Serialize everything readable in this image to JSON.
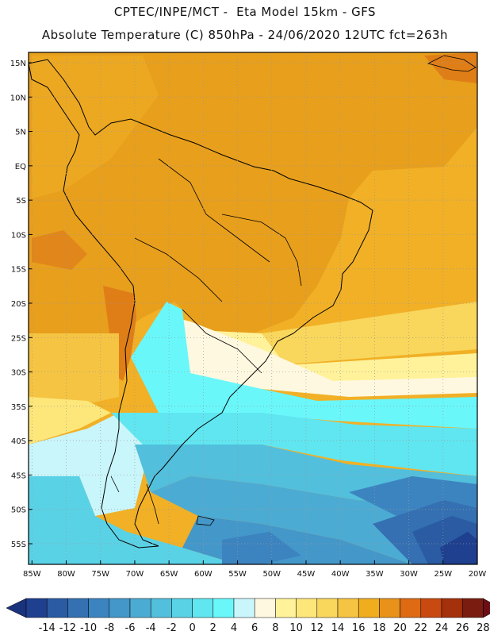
{
  "header": {
    "line1": "CPTEC/INPE/MCT -  Eta Model 15km - GFS",
    "line2": "Absolute Temperature (C) 850hPa - 24/06/2020 12UTC fct=263h"
  },
  "map": {
    "lat_labels": [
      "15N",
      "10N",
      "5N",
      "EQ",
      "5S",
      "10S",
      "15S",
      "20S",
      "25S",
      "30S",
      "35S",
      "40S",
      "45S",
      "50S",
      "55S"
    ],
    "lat_values": [
      15,
      10,
      5,
      0,
      -5,
      -10,
      -15,
      -20,
      -25,
      -30,
      -35,
      -40,
      -45,
      -50,
      -55
    ],
    "lon_labels": [
      "85W",
      "80W",
      "75W",
      "70W",
      "65W",
      "60W",
      "55W",
      "50W",
      "45W",
      "40W",
      "35W",
      "30W",
      "25W",
      "20W"
    ],
    "lon_values": [
      -85,
      -80,
      -75,
      -70,
      -65,
      -60,
      -55,
      -50,
      -45,
      -40,
      -35,
      -30,
      -25,
      -20
    ],
    "extent": {
      "lon_min": -85.5,
      "lon_max": -20,
      "lat_min": -58,
      "lat_max": 16.5
    }
  },
  "colorbar": {
    "labels": [
      "-14",
      "-12",
      "-10",
      "-8",
      "-6",
      "-4",
      "-2",
      "0",
      "2",
      "4",
      "6",
      "8",
      "10",
      "12",
      "14",
      "16",
      "18",
      "20",
      "22",
      "24",
      "26",
      "28"
    ],
    "colors": [
      "#1f3f8f",
      "#2a5ba3",
      "#3470b2",
      "#3c84c0",
      "#4497c9",
      "#4cabd3",
      "#52bfdc",
      "#5ad2e6",
      "#60e6f0",
      "#6af7fa",
      "#c9f6fb",
      "#fff8e0",
      "#fff29a",
      "#fde77a",
      "#f9d65c",
      "#f4c442",
      "#f0ad1e",
      "#e8921b",
      "#de6a14",
      "#c94a10",
      "#a5300c",
      "#7a1d10"
    ],
    "under_color": "#1a337d",
    "over_color": "#6b0e16"
  }
}
